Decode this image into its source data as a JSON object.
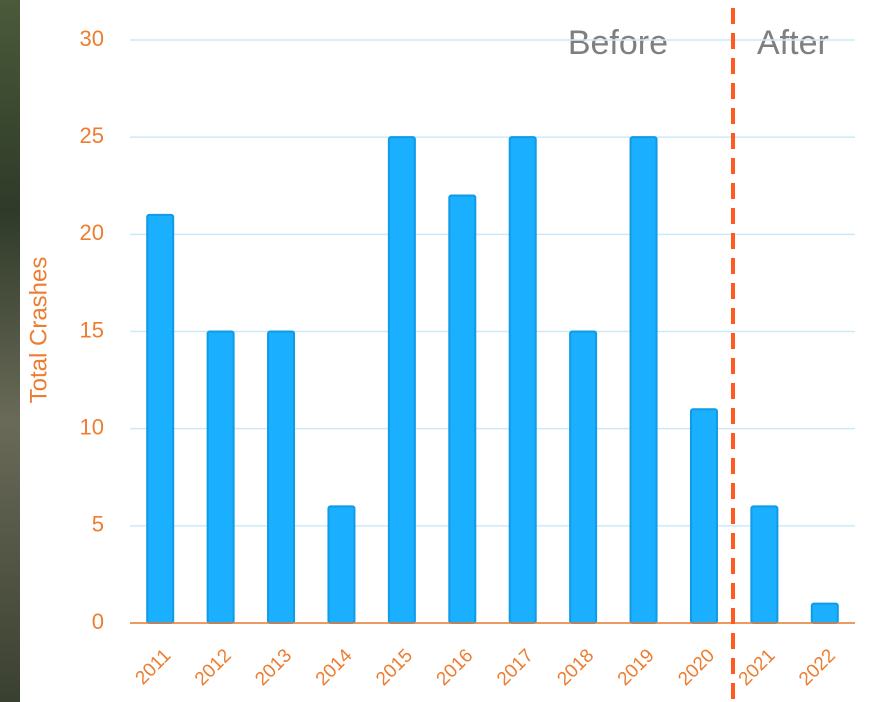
{
  "chart_data": {
    "type": "bar",
    "y_label": "Total Crashes",
    "categories": [
      "2011",
      "2012",
      "2013",
      "2014",
      "2015",
      "2016",
      "2017",
      "2018",
      "2019",
      "2020",
      "2021",
      "2022"
    ],
    "values": [
      21,
      15,
      15,
      6,
      25,
      22,
      25,
      15,
      25,
      11,
      6,
      1
    ],
    "color": "#1aafff",
    "ylim": [
      0,
      30
    ],
    "yticks": [
      0,
      5,
      10,
      15,
      20,
      25,
      30
    ],
    "grid": true,
    "annotations": [
      "Before",
      "After"
    ]
  }
}
